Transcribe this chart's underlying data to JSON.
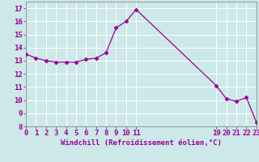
{
  "x": [
    0,
    1,
    2,
    3,
    4,
    5,
    6,
    7,
    8,
    9,
    10,
    11,
    19,
    20,
    21,
    22,
    23
  ],
  "y": [
    13.5,
    13.2,
    13.0,
    12.9,
    12.9,
    12.9,
    13.1,
    13.2,
    13.6,
    15.5,
    16.0,
    16.9,
    11.1,
    10.1,
    9.9,
    10.2,
    8.3
  ],
  "line_color": "#990099",
  "marker": "D",
  "marker_size": 2.5,
  "bg_color": "#cce8e8",
  "grid_color": "#aed4d4",
  "xlabel": "Windchill (Refroidissement éolien,°C)",
  "xlim": [
    0,
    23
  ],
  "ylim": [
    8,
    17.5
  ],
  "yticks": [
    8,
    9,
    10,
    11,
    12,
    13,
    14,
    15,
    16,
    17
  ],
  "xticks": [
    0,
    1,
    2,
    3,
    4,
    5,
    6,
    7,
    8,
    9,
    10,
    11,
    19,
    20,
    21,
    22,
    23
  ],
  "tick_color": "#990099",
  "spine_color": "#888888",
  "font_size": 6.5
}
